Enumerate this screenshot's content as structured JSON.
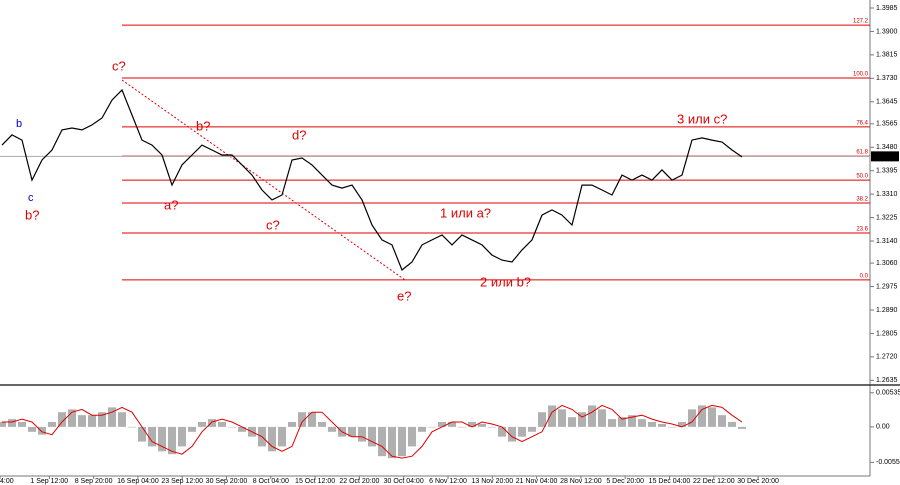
{
  "chart_data": {
    "type": "line",
    "x_labels": [
      "4:00",
      "1 Sep 12:00",
      "8 Sep 20:00",
      "16 Sep 04:00",
      "23 Sep 12:00",
      "30 Sep 20:00",
      "8 Oct 04:00",
      "15 Oct 12:00",
      "22 Oct 20:00",
      "30 Oct 04:00",
      "6 Nov 12:00",
      "13 Nov 20:00",
      "21 Nov 04:00",
      "28 Nov 12:00",
      "5 Dec 20:00",
      "15 Dec 04:00",
      "22 Dec 12:00",
      "30 Dec 20:00"
    ],
    "series": [
      {
        "color": "#000000",
        "values": [
          1.3488,
          1.3525,
          1.3506,
          1.3361,
          1.3434,
          1.347,
          1.3543,
          1.355,
          1.3543,
          1.3561,
          1.3586,
          1.3651,
          1.3688,
          1.3597,
          1.3506,
          1.3488,
          1.3452,
          1.3343,
          1.3416,
          1.3452,
          1.3488,
          1.347,
          1.3452,
          1.3452,
          1.3416,
          1.3379,
          1.3325,
          1.3289,
          1.3307,
          1.3434,
          1.3441,
          1.3416,
          1.3379,
          1.3343,
          1.3332,
          1.3343,
          1.3289,
          1.3198,
          1.3144,
          1.3126,
          1.3035,
          1.3064,
          1.3126,
          1.3144,
          1.3162,
          1.3126,
          1.3162,
          1.3144,
          1.3126,
          1.3089,
          1.3071,
          1.3064,
          1.3108,
          1.3144,
          1.3234,
          1.3253,
          1.3234,
          1.3198,
          1.3343,
          1.3343,
          1.3325,
          1.3307,
          1.3379,
          1.3361,
          1.3379,
          1.3361,
          1.3398,
          1.3361,
          1.3379,
          1.3506,
          1.3514,
          1.3506,
          1.3499,
          1.347,
          1.3445
        ]
      }
    ],
    "ylim": [
      1.2618,
      1.4014
    ],
    "yticks": [
      1.3985,
      {
        "value": 1.39,
        "label": "1.3900"
      },
      1.3815,
      {
        "value": 1.373,
        "label": "1.3730"
      },
      1.3645,
      1.3565,
      {
        "value": 1.348,
        "label": "1.3480"
      },
      1.3395,
      {
        "value": 1.331,
        "label": "1.3310"
      },
      1.3225,
      {
        "value": 1.314,
        "label": "1.3140"
      },
      {
        "value": 1.306,
        "label": "1.3060"
      },
      1.2975,
      {
        "value": 1.289,
        "label": "1.2890"
      },
      1.2805,
      {
        "value": 1.272,
        "label": "1.2720"
      },
      1.2635
    ],
    "current_price": 1.3447,
    "fib_color": "#e00000",
    "fib_levels": [
      {
        "label": "127.2",
        "price": 1.3923
      },
      {
        "label": "100.0",
        "price": 1.3731
      },
      {
        "label": "76.4",
        "price": 1.3554
      },
      {
        "label": "61.8",
        "price": 1.3448
      },
      {
        "label": "50.0",
        "price": 1.3361
      },
      {
        "label": "38.2",
        "price": 1.3278
      },
      {
        "label": "23.6",
        "price": 1.3169
      },
      {
        "label": "0.0",
        "price": 1.2999
      }
    ],
    "annotations": [
      "c?",
      "b?",
      "d?",
      "a?",
      "c?",
      "e?",
      "1 или a?",
      "2 или b?",
      "3 или c?",
      "b",
      "c",
      "b?"
    ],
    "oscillator": {
      "ylim": [
        -0.0077,
        0.0061
      ],
      "yticks": [
        0.00535,
        {
          "value": 0,
          "label": "0.00"
        },
        -0.00556
      ],
      "histogram": {
        "color": "#b0b0b0",
        "values": [
          0.00077,
          0.00122,
          0.00077,
          -0.00077,
          -0.00122,
          0.00077,
          0.0023,
          0.00275,
          0.00184,
          0.00184,
          0.0023,
          0.00306,
          0.0023,
          0,
          -0.0023,
          -0.00306,
          -0.00383,
          -0.00428,
          -0.00306,
          -0.00077,
          0.00077,
          0.00122,
          0.00077,
          0,
          -0.00077,
          -0.00153,
          -0.00306,
          -0.00383,
          -0.00306,
          0.00077,
          0.0023,
          0.0023,
          0.00077,
          -0.00077,
          -0.00153,
          -0.00153,
          -0.0023,
          -0.00306,
          -0.00459,
          -0.0049,
          -0.00459,
          -0.00306,
          -0.00077,
          0,
          0.00077,
          0.00077,
          0,
          0.00077,
          0.00046,
          0,
          -0.00153,
          -0.0023,
          -0.00153,
          -0.00077,
          0.0023,
          0.00337,
          0.00275,
          0.00153,
          0.0023,
          0.00337,
          0.00275,
          0.00122,
          0.00153,
          0.00184,
          0.00122,
          0.00077,
          0.00046,
          0,
          0.00077,
          0.00275,
          0.00337,
          0.00306,
          0.00184,
          0.00077,
          -0.00031
        ]
      },
      "signal": {
        "color": "#e00000",
        "values": [
          0.00077,
          0.00077,
          0.00122,
          0.00077,
          -0.00077,
          -0.00122,
          0.00077,
          0.0023,
          0.00275,
          0.00184,
          0.00184,
          0.0023,
          0.00306,
          0.0023,
          0,
          -0.0023,
          -0.00306,
          -0.00383,
          -0.00428,
          -0.00306,
          -0.00077,
          0.00077,
          0.00122,
          0.00077,
          0,
          -0.00077,
          -0.00153,
          -0.00306,
          -0.00383,
          -0.00306,
          0.00077,
          0.0023,
          0.0023,
          0.00077,
          -0.00077,
          -0.00153,
          -0.00153,
          -0.0023,
          -0.00306,
          -0.00459,
          -0.0049,
          -0.00459,
          -0.00306,
          -0.00077,
          0,
          0.00077,
          0.00077,
          0,
          0.00077,
          0.00046,
          0,
          -0.00153,
          -0.0023,
          -0.00153,
          -0.00077,
          0.0023,
          0.00337,
          0.00275,
          0.00153,
          0.0023,
          0.00337,
          0.00275,
          0.00122,
          0.00153,
          0.00184,
          0.00122,
          0.00077,
          0.00046,
          0,
          0.00077,
          0.00275,
          0.00337,
          0.00306,
          0.00184,
          0.00077
        ]
      }
    }
  }
}
